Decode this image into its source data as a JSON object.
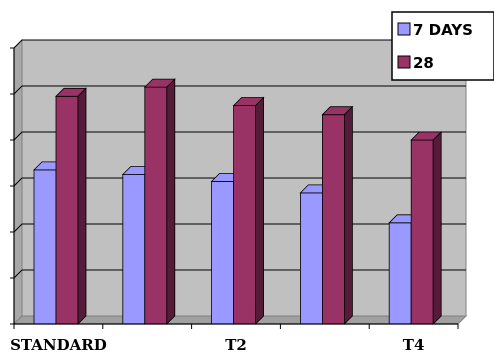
{
  "chart_data": {
    "type": "bar",
    "style": "3d-clustered",
    "categories": [
      "STANDARD",
      "",
      "T2",
      "",
      "T4"
    ],
    "series": [
      {
        "name": "7 DAYS",
        "values": [
          33.5,
          32.5,
          31.0,
          28.5,
          22.0
        ],
        "color": "#9999ff"
      },
      {
        "name": "28",
        "values": [
          49.5,
          51.5,
          47.5,
          45.5,
          40.0
        ],
        "color": "#993366"
      }
    ],
    "ylim": [
      0,
      60
    ],
    "ytick_step": 10,
    "grid": true,
    "wall_color": "#c0c0c0",
    "legend_position": "top-right"
  }
}
